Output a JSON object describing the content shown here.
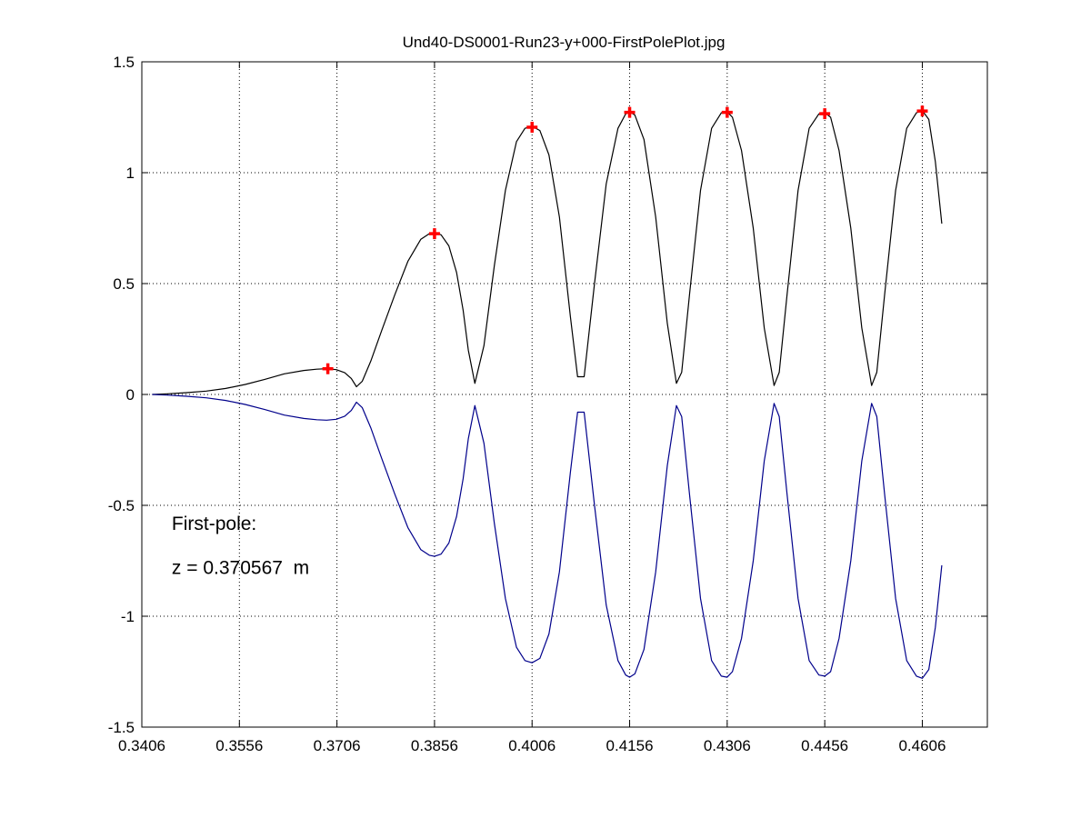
{
  "chart_data": {
    "type": "line",
    "title": "Und40-DS0001-Run23-y+000-FirstPolePlot.jpg",
    "xlabel": "",
    "ylabel": "",
    "xlim": [
      0.3406,
      0.4706
    ],
    "ylim": [
      -1.5,
      1.5
    ],
    "xticks": [
      0.3406,
      0.3556,
      0.3706,
      0.3856,
      0.4006,
      0.4156,
      0.4306,
      0.4456,
      0.4606
    ],
    "xtick_labels": [
      "0.3406",
      "0.3556",
      "0.3706",
      "0.3856",
      "0.4006",
      "0.4156",
      "0.4306",
      "0.4456",
      "0.4606"
    ],
    "yticks": [
      -1.5,
      -1,
      -0.5,
      0,
      0.5,
      1,
      1.5
    ],
    "ytick_labels": [
      "-1.5",
      "-1",
      "-0.5",
      "0",
      "0.5",
      "1",
      "1.5"
    ],
    "grid": true,
    "grid_style": "dotted",
    "series": [
      {
        "color": "#000000",
        "style": "line",
        "x": [
          0.3422,
          0.3445,
          0.3475,
          0.3505,
          0.3535,
          0.3565,
          0.3595,
          0.3625,
          0.3655,
          0.3675,
          0.369,
          0.3705,
          0.3718,
          0.3728,
          0.3736,
          0.3745,
          0.3758,
          0.3775,
          0.3795,
          0.3815,
          0.3835,
          0.3848,
          0.3856,
          0.3866,
          0.3878,
          0.389,
          0.39,
          0.3908,
          0.3918,
          0.3932,
          0.3948,
          0.3965,
          0.3982,
          0.3995,
          0.4006,
          0.4018,
          0.4032,
          0.4048,
          0.4065,
          0.4076,
          0.4086,
          0.4102,
          0.412,
          0.4138,
          0.415,
          0.4156,
          0.4164,
          0.4178,
          0.4196,
          0.4214,
          0.4228,
          0.4236,
          0.4248,
          0.4265,
          0.4282,
          0.4297,
          0.4306,
          0.4314,
          0.4328,
          0.4346,
          0.4363,
          0.4378,
          0.4386,
          0.4398,
          0.4415,
          0.4432,
          0.4447,
          0.4456,
          0.4465,
          0.4478,
          0.4496,
          0.4513,
          0.4528,
          0.4536,
          0.4548,
          0.4565,
          0.4582,
          0.4597,
          0.4606,
          0.4616,
          0.4626,
          0.4636
        ],
        "y": [
          0.0,
          0.003,
          0.008,
          0.015,
          0.027,
          0.045,
          0.068,
          0.093,
          0.108,
          0.114,
          0.116,
          0.112,
          0.098,
          0.072,
          0.035,
          0.06,
          0.15,
          0.29,
          0.45,
          0.6,
          0.7,
          0.725,
          0.73,
          0.72,
          0.67,
          0.55,
          0.38,
          0.2,
          0.05,
          0.22,
          0.58,
          0.92,
          1.14,
          1.2,
          1.21,
          1.19,
          1.08,
          0.8,
          0.35,
          0.08,
          0.08,
          0.5,
          0.95,
          1.2,
          1.265,
          1.275,
          1.26,
          1.15,
          0.8,
          0.32,
          0.05,
          0.1,
          0.45,
          0.92,
          1.2,
          1.27,
          1.275,
          1.25,
          1.1,
          0.75,
          0.3,
          0.04,
          0.1,
          0.45,
          0.92,
          1.2,
          1.265,
          1.27,
          1.25,
          1.1,
          0.75,
          0.3,
          0.04,
          0.1,
          0.45,
          0.92,
          1.2,
          1.27,
          1.28,
          1.24,
          1.05,
          0.77
        ]
      },
      {
        "color": "#00008b",
        "style": "line",
        "x": [
          0.3422,
          0.3445,
          0.3475,
          0.3505,
          0.3535,
          0.3565,
          0.3595,
          0.3625,
          0.3655,
          0.3675,
          0.369,
          0.3705,
          0.3718,
          0.3728,
          0.3736,
          0.3745,
          0.3758,
          0.3775,
          0.3795,
          0.3815,
          0.3835,
          0.3848,
          0.3856,
          0.3866,
          0.3878,
          0.389,
          0.39,
          0.3908,
          0.3918,
          0.3932,
          0.3948,
          0.3965,
          0.3982,
          0.3995,
          0.4006,
          0.4018,
          0.4032,
          0.4048,
          0.4065,
          0.4076,
          0.4086,
          0.4102,
          0.412,
          0.4138,
          0.415,
          0.4156,
          0.4164,
          0.4178,
          0.4196,
          0.4214,
          0.4228,
          0.4236,
          0.4248,
          0.4265,
          0.4282,
          0.4297,
          0.4306,
          0.4314,
          0.4328,
          0.4346,
          0.4363,
          0.4378,
          0.4386,
          0.4398,
          0.4415,
          0.4432,
          0.4447,
          0.4456,
          0.4465,
          0.4478,
          0.4496,
          0.4513,
          0.4528,
          0.4536,
          0.4548,
          0.4565,
          0.4582,
          0.4597,
          0.4606,
          0.4616,
          0.4626,
          0.4636
        ],
        "y": [
          0.0,
          -0.003,
          -0.008,
          -0.015,
          -0.027,
          -0.045,
          -0.068,
          -0.093,
          -0.108,
          -0.114,
          -0.116,
          -0.112,
          -0.098,
          -0.072,
          -0.035,
          -0.06,
          -0.15,
          -0.29,
          -0.45,
          -0.6,
          -0.7,
          -0.725,
          -0.73,
          -0.72,
          -0.67,
          -0.55,
          -0.38,
          -0.2,
          -0.05,
          -0.22,
          -0.58,
          -0.92,
          -1.14,
          -1.2,
          -1.21,
          -1.19,
          -1.08,
          -0.8,
          -0.35,
          -0.08,
          -0.08,
          -0.5,
          -0.95,
          -1.2,
          -1.265,
          -1.275,
          -1.26,
          -1.15,
          -0.8,
          -0.32,
          -0.05,
          -0.1,
          -0.45,
          -0.92,
          -1.2,
          -1.27,
          -1.275,
          -1.25,
          -1.1,
          -0.75,
          -0.3,
          -0.04,
          -0.1,
          -0.45,
          -0.92,
          -1.2,
          -1.265,
          -1.27,
          -1.25,
          -1.1,
          -0.75,
          -0.3,
          -0.04,
          -0.1,
          -0.45,
          -0.92,
          -1.2,
          -1.27,
          -1.28,
          -1.24,
          -1.05,
          -0.77
        ]
      },
      {
        "color": "#ff0000",
        "style": "plus-markers",
        "x": [
          0.3692,
          0.3856,
          0.4006,
          0.4156,
          0.4306,
          0.4456,
          0.4606
        ],
        "y": [
          0.116,
          0.725,
          1.205,
          1.272,
          1.272,
          1.266,
          1.278
        ]
      }
    ],
    "annotations": [
      {
        "text": "First-pole:",
        "x": 0.3452,
        "y": -0.61
      },
      {
        "text": "z = 0.370567  m",
        "x": 0.3452,
        "y": -0.81
      }
    ]
  }
}
